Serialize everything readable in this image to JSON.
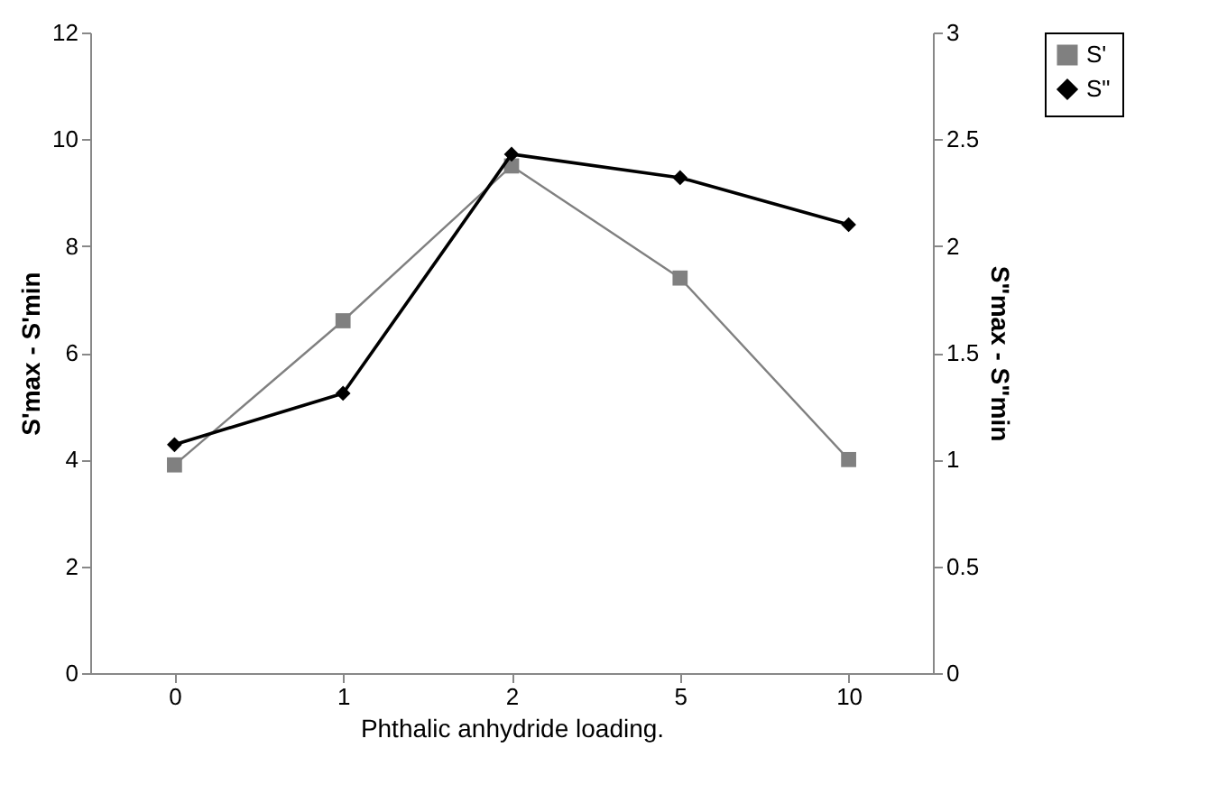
{
  "chart_data": {
    "type": "line",
    "xlabel": "Phthalic anhydride loading.",
    "ylabel": "S'max - S'min",
    "y2label": "S\"max - S\"min",
    "categories": [
      "0",
      "1",
      "2",
      "5",
      "10"
    ],
    "series": [
      {
        "name": "S'",
        "color": "#808080",
        "marker": "square",
        "values": [
          3.9,
          6.6,
          9.5,
          7.4,
          4.0
        ]
      },
      {
        "name": "S\"",
        "color": "#000000",
        "marker": "diamond",
        "axis": "y2",
        "values": [
          1.07,
          1.31,
          2.43,
          2.32,
          2.1
        ]
      }
    ],
    "ylim": [
      0,
      12
    ],
    "yticks": [
      0,
      2,
      4,
      6,
      8,
      10,
      12
    ],
    "y2lim": [
      0,
      3
    ],
    "y2ticks": [
      0,
      0.5,
      1,
      1.5,
      2,
      2.5,
      3
    ],
    "grid": false,
    "legend": "right",
    "line_style": "solid"
  }
}
